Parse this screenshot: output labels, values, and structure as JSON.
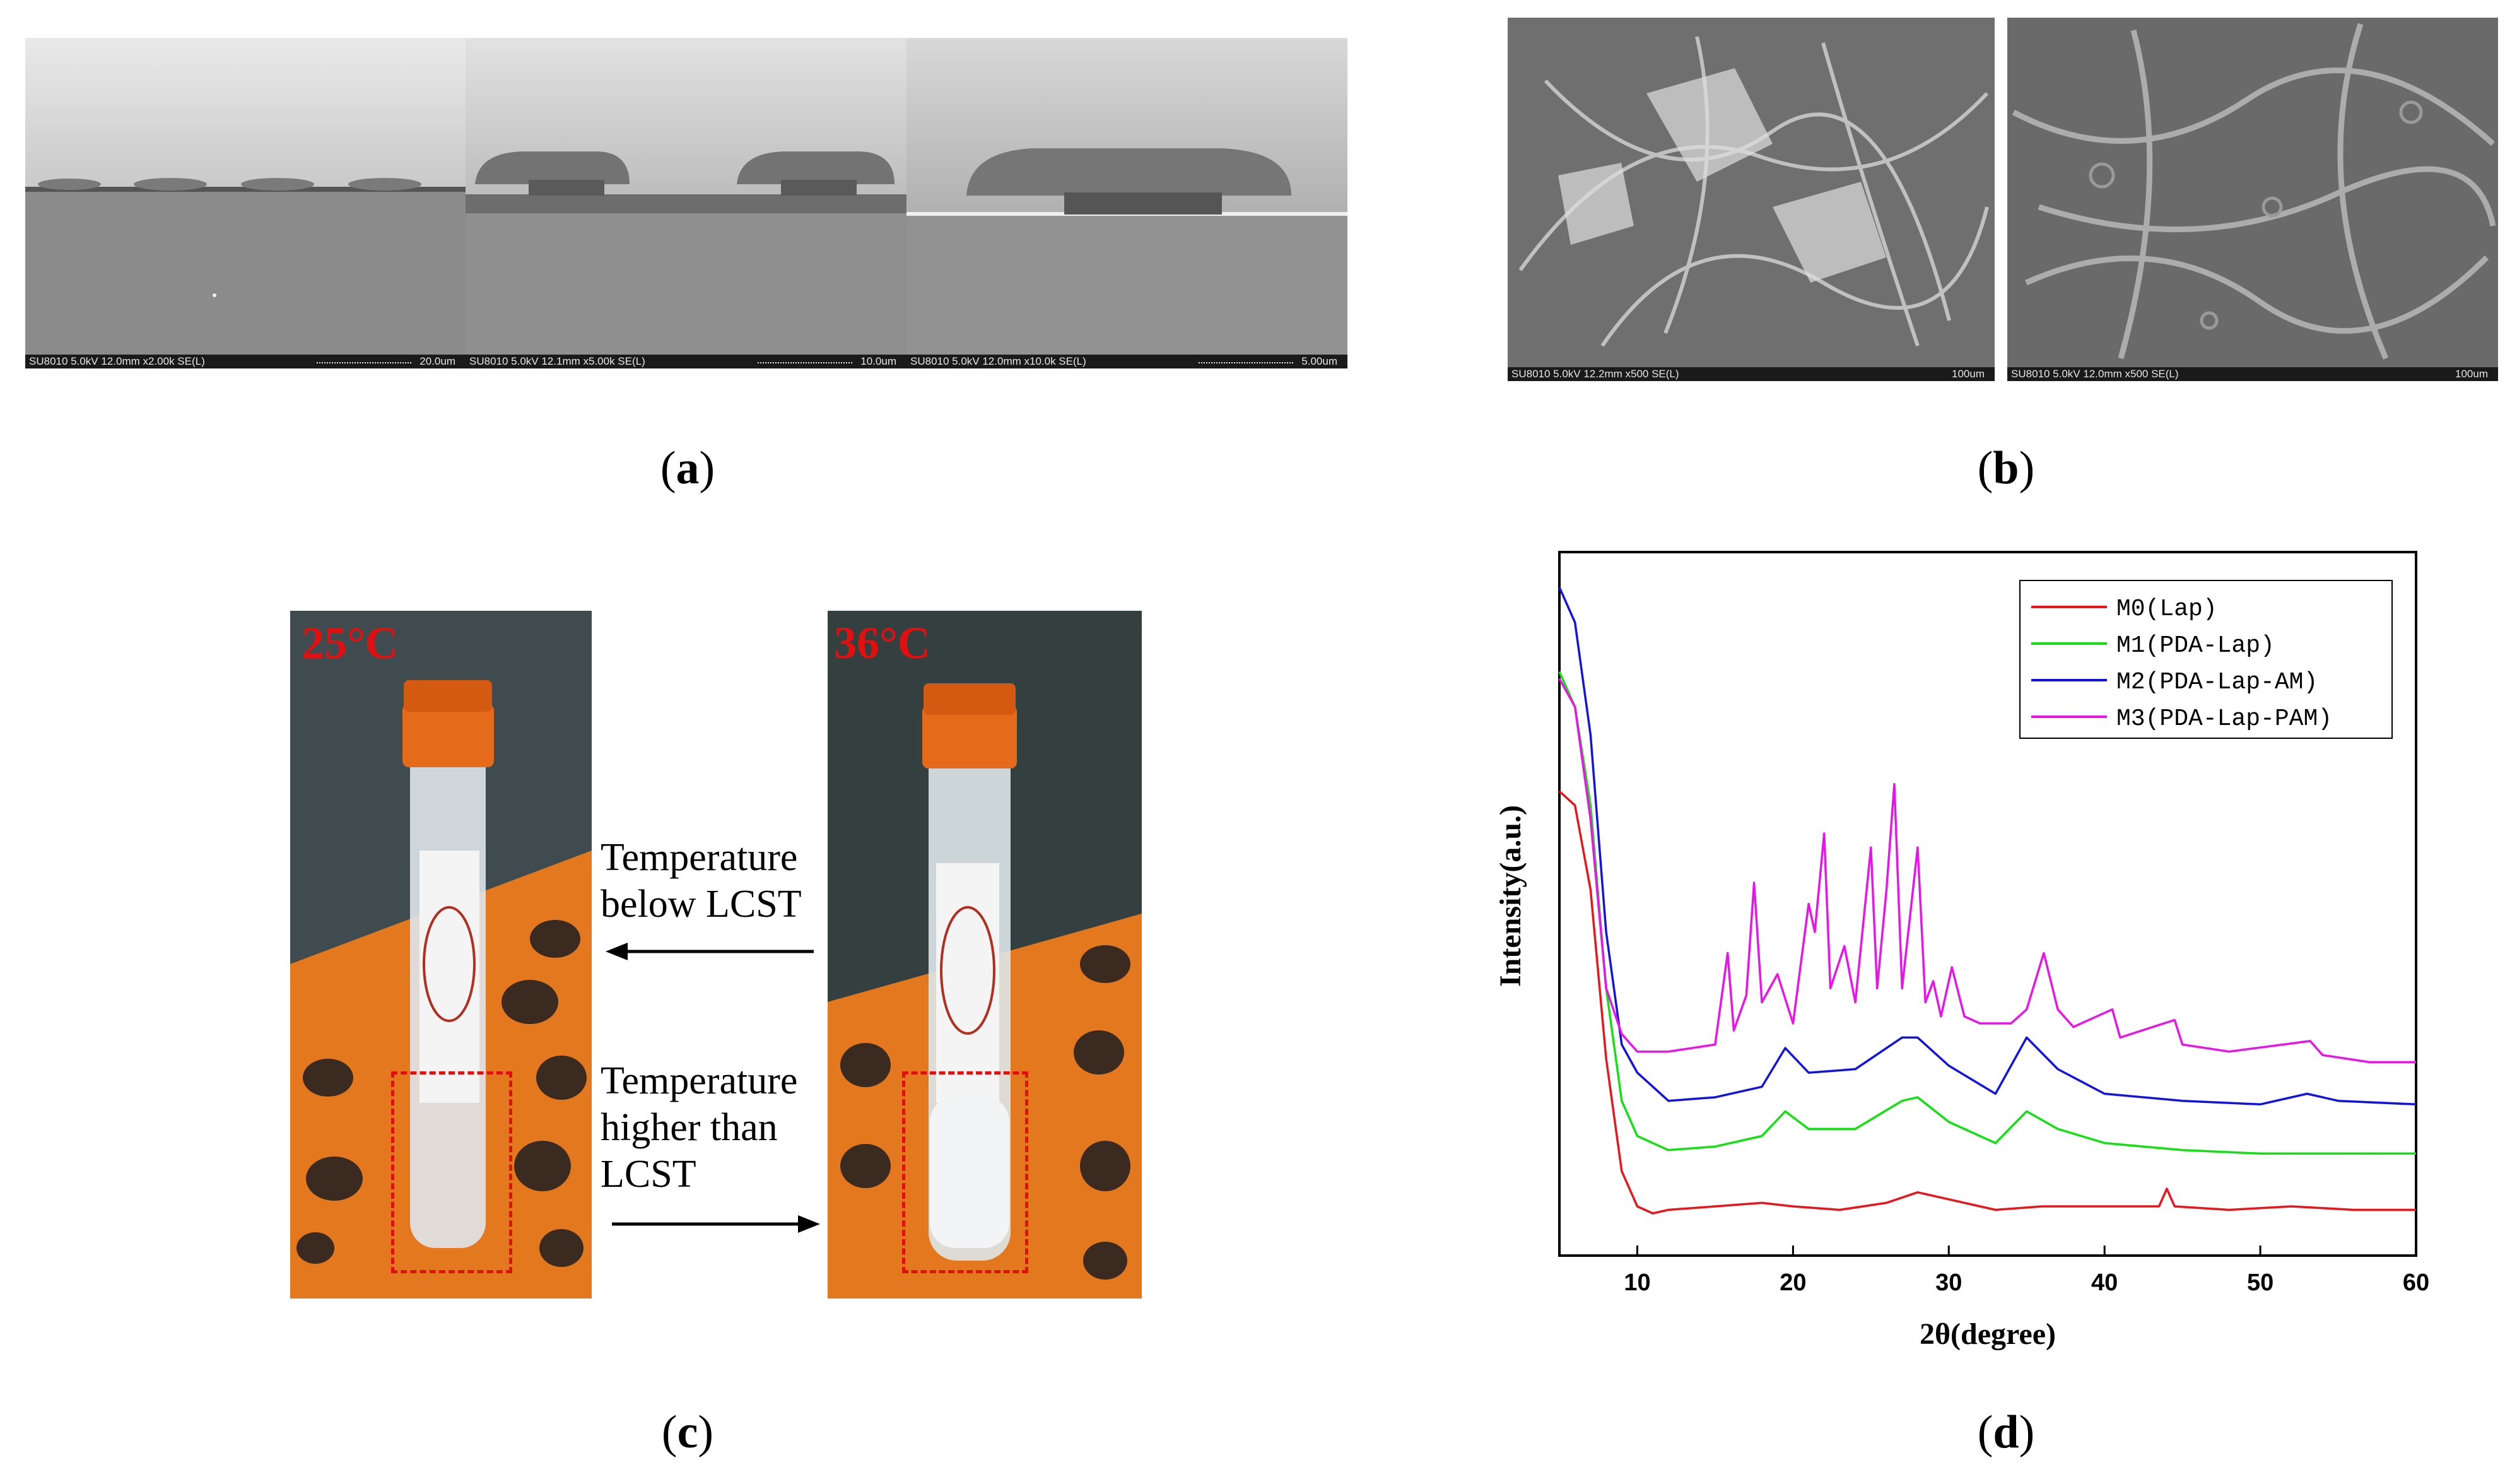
{
  "panel_a": {
    "caption_letter": "a",
    "images": [
      {
        "info": "SU8010 5.0kV 12.0mm x2.00k SE(L)",
        "scale": "20.0um"
      },
      {
        "info": "SU8010 5.0kV 12.1mm x5.00k SE(L)",
        "scale": "10.0um"
      },
      {
        "info": "SU8010 5.0kV 12.0mm x10.0k SE(L)",
        "scale": "5.00um"
      }
    ]
  },
  "panel_b": {
    "caption_letter": "b",
    "images": [
      {
        "info": "SU8010 5.0kV 12.2mm x500 SE(L)",
        "scale": "100um"
      },
      {
        "info": "SU8010 5.0kV 12.0mm x500 SE(L)",
        "scale": "100um"
      }
    ]
  },
  "panel_c": {
    "caption_letter": "c",
    "left_temp": "25°C",
    "right_temp": "36°C",
    "top_arrow_text": [
      "Temperature",
      "below LCST"
    ],
    "bottom_arrow_text": [
      "Temperature",
      "higher than",
      "LCST"
    ]
  },
  "panel_d": {
    "caption_letter": "d"
  },
  "chart_data": {
    "type": "line",
    "title": "",
    "xlabel": "2θ(degree)",
    "ylabel": "Intensity(a.u.)",
    "xlim": [
      5,
      60
    ],
    "ylim": [
      0,
      100
    ],
    "xticks": [
      10,
      20,
      30,
      40,
      50,
      60
    ],
    "legend_position": "top-right",
    "series": [
      {
        "name": "M0(Lap)",
        "color": "#e8151b",
        "points": [
          [
            5,
            66
          ],
          [
            6,
            64
          ],
          [
            7,
            52
          ],
          [
            8,
            28
          ],
          [
            9,
            12
          ],
          [
            10,
            7
          ],
          [
            11,
            6
          ],
          [
            12,
            6.5
          ],
          [
            15,
            7
          ],
          [
            18,
            7.5
          ],
          [
            20,
            7
          ],
          [
            23,
            6.5
          ],
          [
            26,
            7.5
          ],
          [
            28,
            9
          ],
          [
            30,
            8
          ],
          [
            33,
            6.5
          ],
          [
            36,
            7
          ],
          [
            40,
            7
          ],
          [
            43.5,
            7
          ],
          [
            44,
            9.5
          ],
          [
            44.5,
            7
          ],
          [
            48,
            6.5
          ],
          [
            52,
            7
          ],
          [
            56,
            6.5
          ],
          [
            60,
            6.5
          ]
        ]
      },
      {
        "name": "M1(PDA-Lap)",
        "color": "#13e013",
        "points": [
          [
            5,
            83
          ],
          [
            6,
            78
          ],
          [
            7,
            64
          ],
          [
            8,
            38
          ],
          [
            9,
            22
          ],
          [
            10,
            17
          ],
          [
            12,
            15
          ],
          [
            15,
            15.5
          ],
          [
            18,
            17
          ],
          [
            19.5,
            20.5
          ],
          [
            21,
            18
          ],
          [
            24,
            18
          ],
          [
            27,
            22
          ],
          [
            28,
            22.5
          ],
          [
            30,
            19
          ],
          [
            33,
            16
          ],
          [
            35,
            20.5
          ],
          [
            37,
            18
          ],
          [
            40,
            16
          ],
          [
            45,
            15
          ],
          [
            50,
            14.5
          ],
          [
            55,
            14.5
          ],
          [
            60,
            14.5
          ]
        ]
      },
      {
        "name": "M2(PDA-Lap-AM)",
        "color": "#1313e0",
        "points": [
          [
            5,
            95
          ],
          [
            6,
            90
          ],
          [
            7,
            74
          ],
          [
            8,
            46
          ],
          [
            9,
            30
          ],
          [
            10,
            26
          ],
          [
            12,
            22
          ],
          [
            15,
            22.5
          ],
          [
            18,
            24
          ],
          [
            19.5,
            29.5
          ],
          [
            21,
            26
          ],
          [
            24,
            26.5
          ],
          [
            27,
            31
          ],
          [
            28,
            31
          ],
          [
            30,
            27
          ],
          [
            33,
            23
          ],
          [
            35,
            31
          ],
          [
            37,
            26.5
          ],
          [
            40,
            23
          ],
          [
            45,
            22
          ],
          [
            50,
            21.5
          ],
          [
            53,
            23
          ],
          [
            55,
            22
          ],
          [
            60,
            21.5
          ]
        ]
      },
      {
        "name": "M3(PDA-Lap-PAM)",
        "color": "#e814e8",
        "points": [
          [
            5,
            82
          ],
          [
            6,
            78
          ],
          [
            7,
            62
          ],
          [
            8,
            38
          ],
          [
            9,
            31.5
          ],
          [
            10,
            29
          ],
          [
            12,
            29
          ],
          [
            15,
            30
          ],
          [
            15.8,
            43
          ],
          [
            16.2,
            32
          ],
          [
            17,
            37
          ],
          [
            17.5,
            53
          ],
          [
            18,
            36
          ],
          [
            19,
            40
          ],
          [
            20,
            33
          ],
          [
            21,
            50
          ],
          [
            21.4,
            46
          ],
          [
            22,
            60
          ],
          [
            22.4,
            38
          ],
          [
            23.3,
            44
          ],
          [
            24,
            36
          ],
          [
            25,
            58
          ],
          [
            25.4,
            38
          ],
          [
            26,
            52
          ],
          [
            26.5,
            67
          ],
          [
            27,
            38
          ],
          [
            28,
            58
          ],
          [
            28.5,
            36
          ],
          [
            29,
            39
          ],
          [
            29.5,
            34
          ],
          [
            30.2,
            41
          ],
          [
            31,
            34
          ],
          [
            32,
            33
          ],
          [
            34,
            33
          ],
          [
            35,
            35
          ],
          [
            36.1,
            43
          ],
          [
            37,
            35
          ],
          [
            38,
            32.5
          ],
          [
            40.5,
            35
          ],
          [
            41,
            31
          ],
          [
            44.5,
            33.5
          ],
          [
            45,
            30
          ],
          [
            48,
            29
          ],
          [
            53.2,
            30.5
          ],
          [
            54,
            28.5
          ],
          [
            57,
            27.5
          ],
          [
            60,
            27.5
          ]
        ]
      }
    ]
  }
}
